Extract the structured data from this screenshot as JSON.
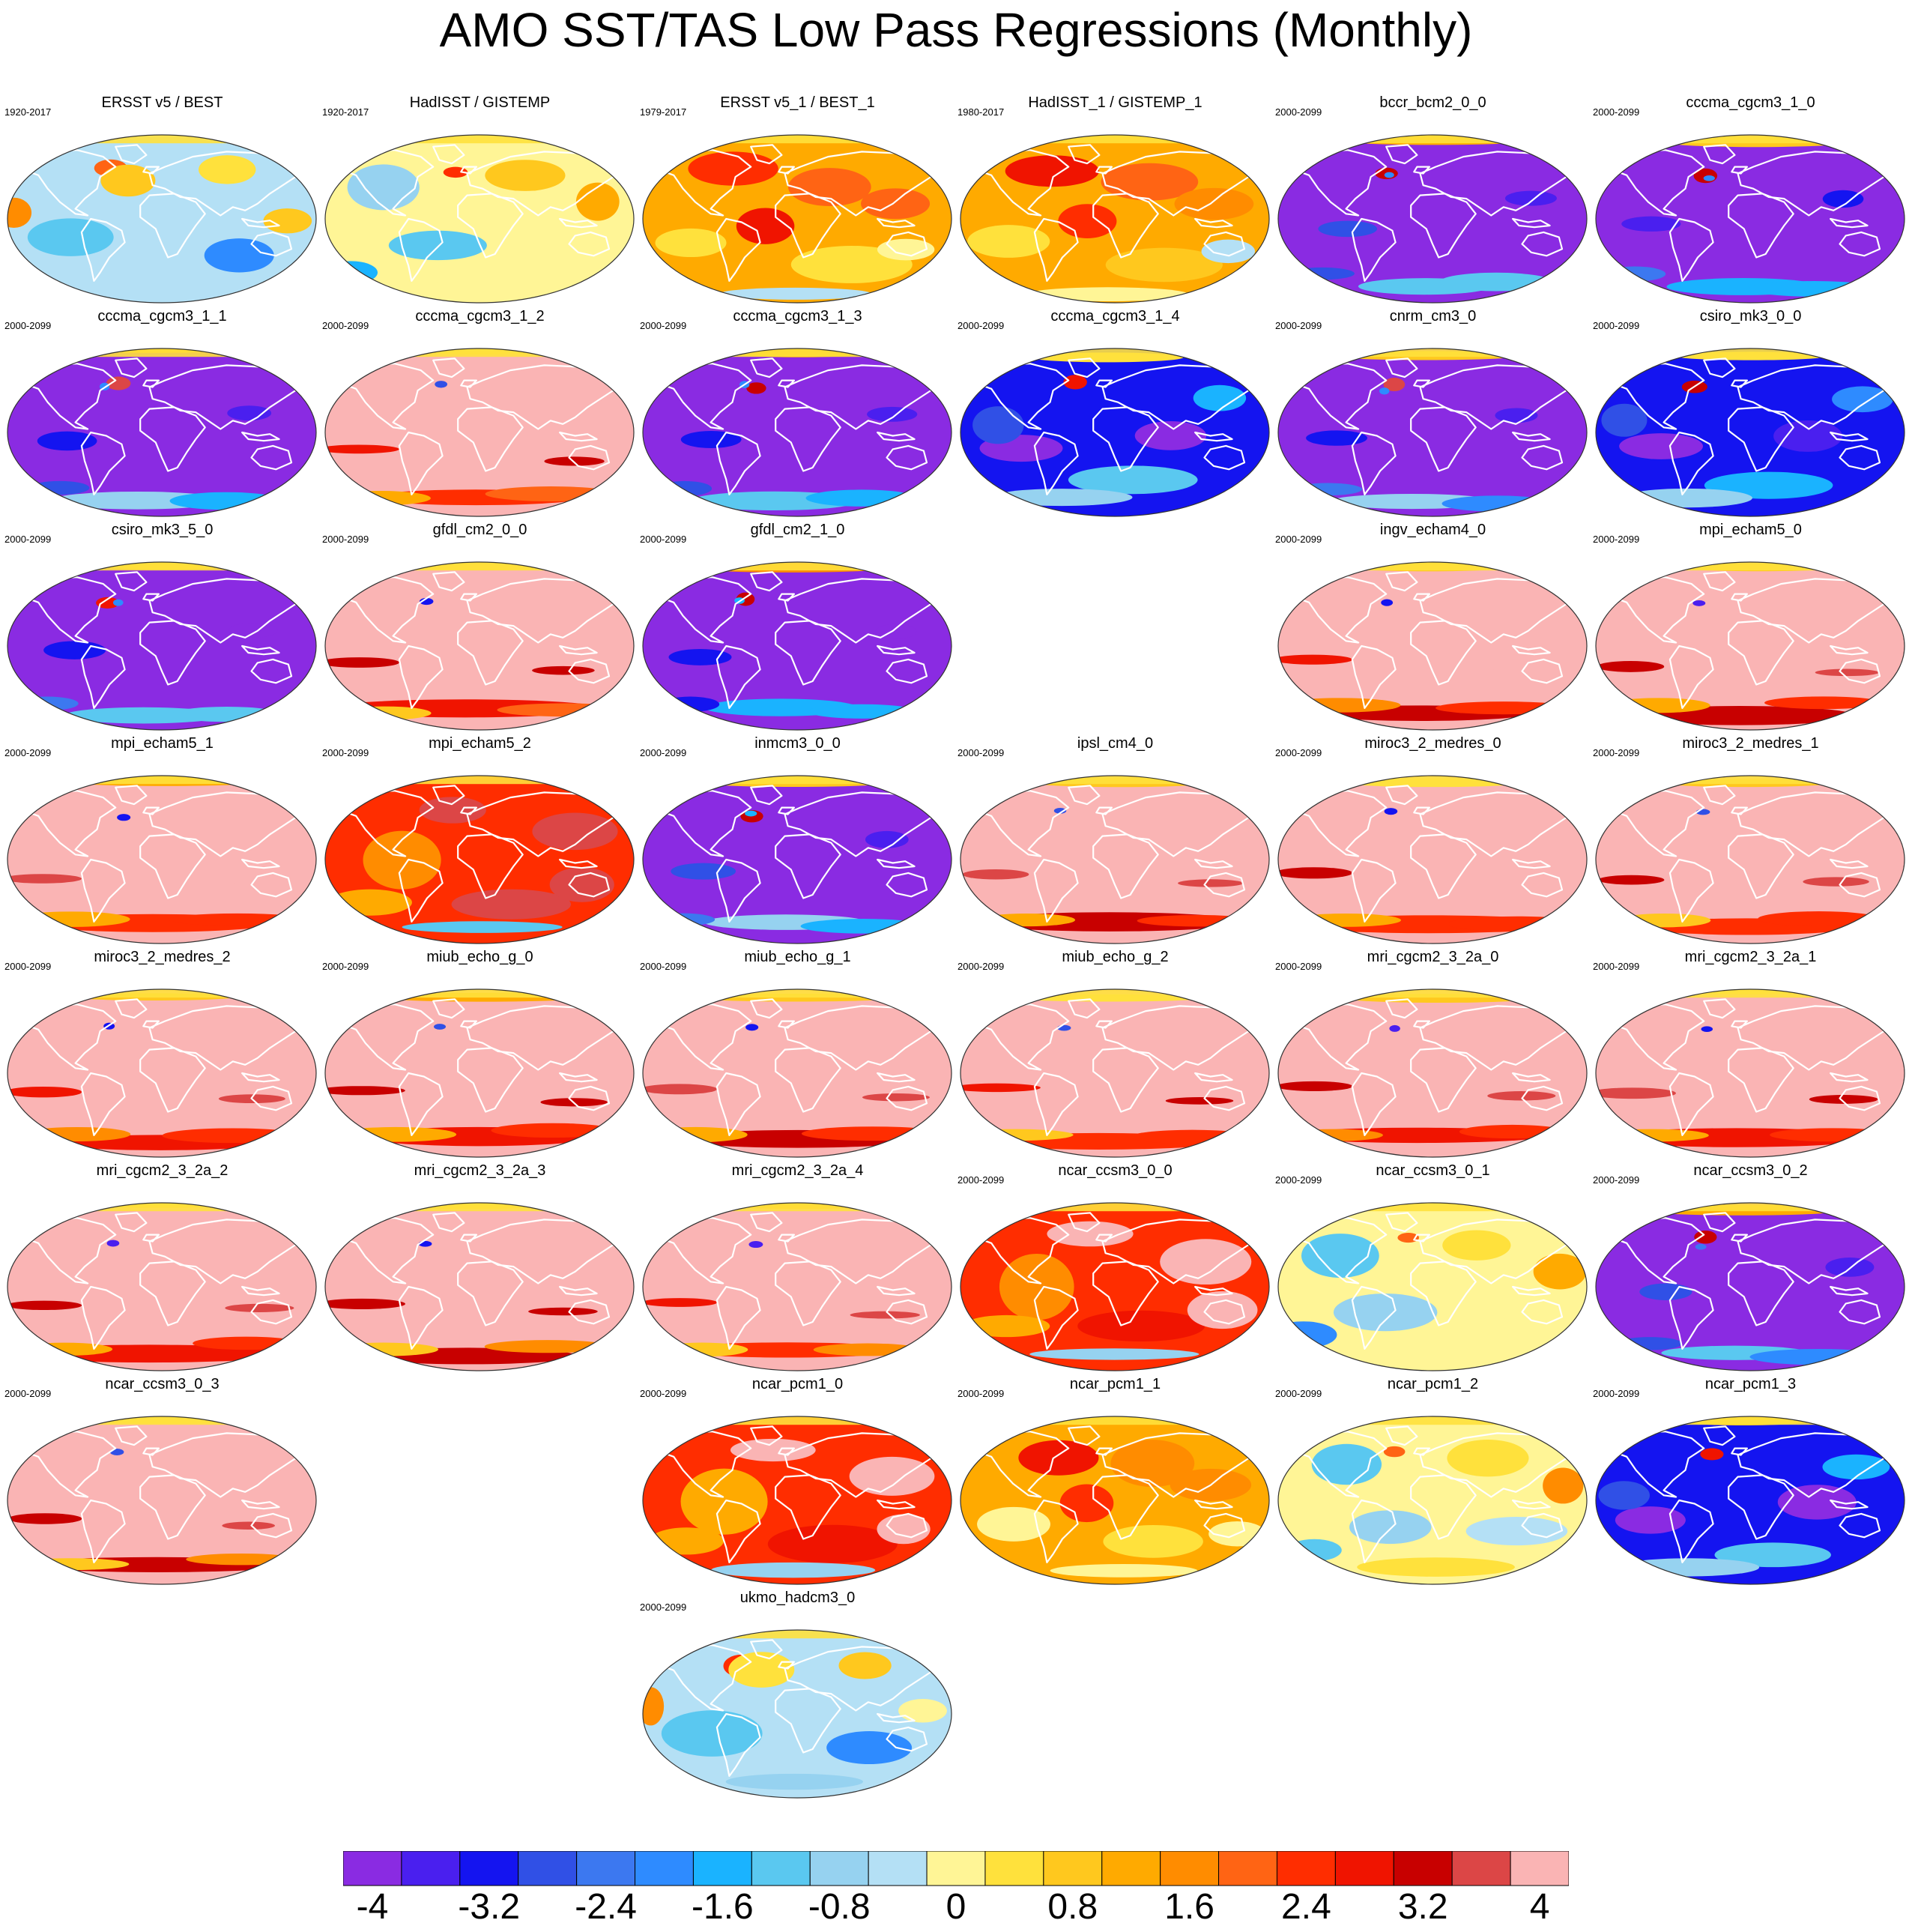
{
  "title": "AMO SST/TAS Low Pass Regressions (Monthly)",
  "chart_data": {
    "type": "heatmap",
    "title": "AMO SST/TAS Low Pass Regressions (Monthly)",
    "projection": "Robinson (global)",
    "panels": [
      {
        "name": "ERSST v5 / BEST",
        "period": "1920-2017",
        "row": 0,
        "col": 0,
        "pattern": "obs_cool"
      },
      {
        "name": "HadISST / GISTEMP",
        "period": "1920-2017",
        "row": 0,
        "col": 1,
        "pattern": "obs_neutral"
      },
      {
        "name": "ERSST v5_1 / BEST_1",
        "period": "1979-2017",
        "row": 0,
        "col": 2,
        "pattern": "obs_warm"
      },
      {
        "name": "HadISST_1 / GISTEMP_1",
        "period": "1980-2017",
        "row": 0,
        "col": 3,
        "pattern": "obs_warm"
      },
      {
        "name": "bccr_bcm2_0_0",
        "period": "2000-2099",
        "row": 0,
        "col": 4,
        "pattern": "neg_purple"
      },
      {
        "name": "cccma_cgcm3_1_0",
        "period": "2000-2099",
        "row": 0,
        "col": 5,
        "pattern": "neg_purple"
      },
      {
        "name": "cccma_cgcm3_1_1",
        "period": "2000-2099",
        "row": 1,
        "col": 0,
        "pattern": "neg_purple"
      },
      {
        "name": "cccma_cgcm3_1_2",
        "period": "2000-2099",
        "row": 1,
        "col": 1,
        "pattern": "pos_pink"
      },
      {
        "name": "cccma_cgcm3_1_3",
        "period": "2000-2099",
        "row": 1,
        "col": 2,
        "pattern": "neg_purple"
      },
      {
        "name": "cccma_cgcm3_1_4",
        "period": "2000-2099",
        "row": 1,
        "col": 3,
        "pattern": "neg_blue"
      },
      {
        "name": "cnrm_cm3_0",
        "period": "2000-2099",
        "row": 1,
        "col": 4,
        "pattern": "neg_purple"
      },
      {
        "name": "csiro_mk3_0_0",
        "period": "2000-2099",
        "row": 1,
        "col": 5,
        "pattern": "neg_blue"
      },
      {
        "name": "csiro_mk3_5_0",
        "period": "2000-2099",
        "row": 2,
        "col": 0,
        "pattern": "neg_purple"
      },
      {
        "name": "gfdl_cm2_0_0",
        "period": "2000-2099",
        "row": 2,
        "col": 1,
        "pattern": "pos_pink"
      },
      {
        "name": "gfdl_cm2_1_0",
        "period": "2000-2099",
        "row": 2,
        "col": 2,
        "pattern": "neg_purple"
      },
      {
        "name": "ingv_echam4_0",
        "period": "2000-2099",
        "row": 2,
        "col": 4,
        "pattern": "pos_pink"
      },
      {
        "name": "mpi_echam5_0",
        "period": "2000-2099",
        "row": 2,
        "col": 5,
        "pattern": "pos_pink"
      },
      {
        "name": "mpi_echam5_1",
        "period": "2000-2099",
        "row": 3,
        "col": 0,
        "pattern": "pos_pink"
      },
      {
        "name": "mpi_echam5_2",
        "period": "2000-2099",
        "row": 3,
        "col": 1,
        "pattern": "pos_red"
      },
      {
        "name": "inmcm3_0_0",
        "period": "2000-2099",
        "row": 3,
        "col": 2,
        "pattern": "neg_purple"
      },
      {
        "name": "ipsl_cm4_0",
        "period": "2000-2099",
        "row": 3,
        "col": 3,
        "pattern": "pos_pink"
      },
      {
        "name": "miroc3_2_medres_0",
        "period": "2000-2099",
        "row": 3,
        "col": 4,
        "pattern": "pos_pink"
      },
      {
        "name": "miroc3_2_medres_1",
        "period": "2000-2099",
        "row": 3,
        "col": 5,
        "pattern": "pos_pink"
      },
      {
        "name": "miroc3_2_medres_2",
        "period": "2000-2099",
        "row": 4,
        "col": 0,
        "pattern": "pos_pink"
      },
      {
        "name": "miub_echo_g_0",
        "period": "2000-2099",
        "row": 4,
        "col": 1,
        "pattern": "pos_pink"
      },
      {
        "name": "miub_echo_g_1",
        "period": "2000-2099",
        "row": 4,
        "col": 2,
        "pattern": "pos_pink"
      },
      {
        "name": "miub_echo_g_2",
        "period": "2000-2099",
        "row": 4,
        "col": 3,
        "pattern": "pos_pink"
      },
      {
        "name": "mri_cgcm2_3_2a_0",
        "period": "2000-2099",
        "row": 4,
        "col": 4,
        "pattern": "pos_pink"
      },
      {
        "name": "mri_cgcm2_3_2a_1",
        "period": "2000-2099",
        "row": 4,
        "col": 5,
        "pattern": "pos_pink"
      },
      {
        "name": "mri_cgcm2_3_2a_2",
        "period": "",
        "row": 5,
        "col": 0,
        "pattern": "pos_pink"
      },
      {
        "name": "mri_cgcm2_3_2a_3",
        "period": "",
        "row": 5,
        "col": 1,
        "pattern": "pos_pink"
      },
      {
        "name": "mri_cgcm2_3_2a_4",
        "period": "",
        "row": 5,
        "col": 2,
        "pattern": "pos_pink"
      },
      {
        "name": "ncar_ccsm3_0_0",
        "period": "2000-2099",
        "row": 5,
        "col": 3,
        "pattern": "pos_red"
      },
      {
        "name": "ncar_ccsm3_0_1",
        "period": "2000-2099",
        "row": 5,
        "col": 4,
        "pattern": "obs_neutral"
      },
      {
        "name": "ncar_ccsm3_0_2",
        "period": "2000-2099",
        "row": 5,
        "col": 5,
        "pattern": "neg_purple"
      },
      {
        "name": "ncar_ccsm3_0_3",
        "period": "2000-2099",
        "row": 6,
        "col": 0,
        "pattern": "pos_pink"
      },
      {
        "name": "ncar_pcm1_0",
        "period": "2000-2099",
        "row": 6,
        "col": 2,
        "pattern": "pos_red"
      },
      {
        "name": "ncar_pcm1_1",
        "period": "2000-2099",
        "row": 6,
        "col": 3,
        "pattern": "obs_warm"
      },
      {
        "name": "ncar_pcm1_2",
        "period": "2000-2099",
        "row": 6,
        "col": 4,
        "pattern": "obs_neutral"
      },
      {
        "name": "ncar_pcm1_3",
        "period": "2000-2099",
        "row": 6,
        "col": 5,
        "pattern": "neg_blue"
      },
      {
        "name": "ukmo_hadcm3_0",
        "period": "2000-2099",
        "row": 7,
        "col": 2,
        "pattern": "obs_cool"
      }
    ],
    "colorbar": {
      "levels": [
        -4,
        -3.6,
        -3.2,
        -2.8,
        -2.4,
        -2,
        -1.6,
        -1.2,
        -0.8,
        -0.4,
        0,
        0.4,
        0.8,
        1.2,
        1.6,
        2,
        2.4,
        2.8,
        3.2,
        3.6,
        4
      ],
      "labels": [
        "-4",
        "-3.2",
        "-2.4",
        "-1.6",
        "-0.8",
        "0",
        "0.8",
        "1.6",
        "2.4",
        "3.2",
        "4"
      ],
      "label_values": [
        -4,
        -3.2,
        -2.4,
        -1.6,
        -0.8,
        0,
        0.8,
        1.6,
        2.4,
        3.2,
        4
      ],
      "colors": [
        "#8a2be2",
        "#4a1fef",
        "#1414f0",
        "#3050e6",
        "#3c78f0",
        "#2e8bff",
        "#1ab3ff",
        "#5ac8f0",
        "#96d2f0",
        "#b4e0f5",
        "#fff596",
        "#ffe13c",
        "#ffc81e",
        "#ffaa00",
        "#ff8c00",
        "#ff6414",
        "#ff2d00",
        "#f01400",
        "#c80000",
        "#dc4646",
        "#fab4b4"
      ]
    }
  }
}
